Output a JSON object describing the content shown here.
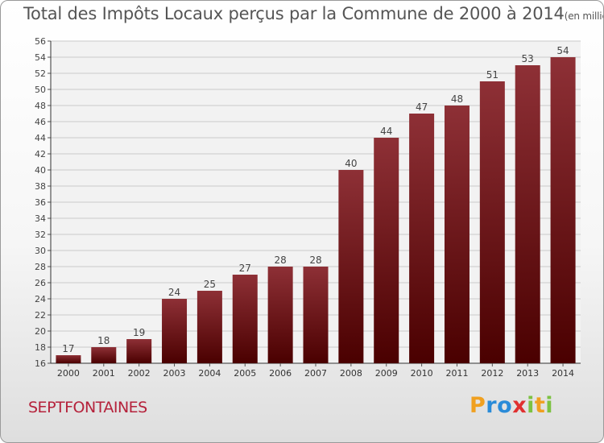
{
  "chart_data": {
    "type": "bar",
    "title": "Total des Impôts Locaux perçus par la Commune de 2000 à 2014",
    "unit": "(en milliers d'€)",
    "categories": [
      "2000",
      "2001",
      "2002",
      "2003",
      "2004",
      "2005",
      "2006",
      "2007",
      "2008",
      "2009",
      "2010",
      "2011",
      "2012",
      "2013",
      "2014"
    ],
    "values": [
      17,
      18,
      19,
      24,
      25,
      27,
      28,
      28,
      40,
      44,
      47,
      48,
      51,
      53,
      54
    ],
    "ylim": [
      16,
      56
    ],
    "yticks": [
      16,
      18,
      20,
      22,
      24,
      26,
      28,
      30,
      32,
      34,
      36,
      38,
      40,
      42,
      44,
      46,
      48,
      50,
      52,
      54,
      56
    ],
    "grid": true,
    "bar_color_light": "#8e3036",
    "bar_color_dark": "#4a0000"
  },
  "commune": "SEPTFONTAINES",
  "logo": {
    "letters": [
      "P",
      "r",
      "o",
      "x",
      "i",
      "t",
      "i"
    ],
    "colors": [
      "#f0a020",
      "#2a8bd8",
      "#2a8bd8",
      "#e03030",
      "#7cc242",
      "#f0a020",
      "#7cc242"
    ]
  }
}
